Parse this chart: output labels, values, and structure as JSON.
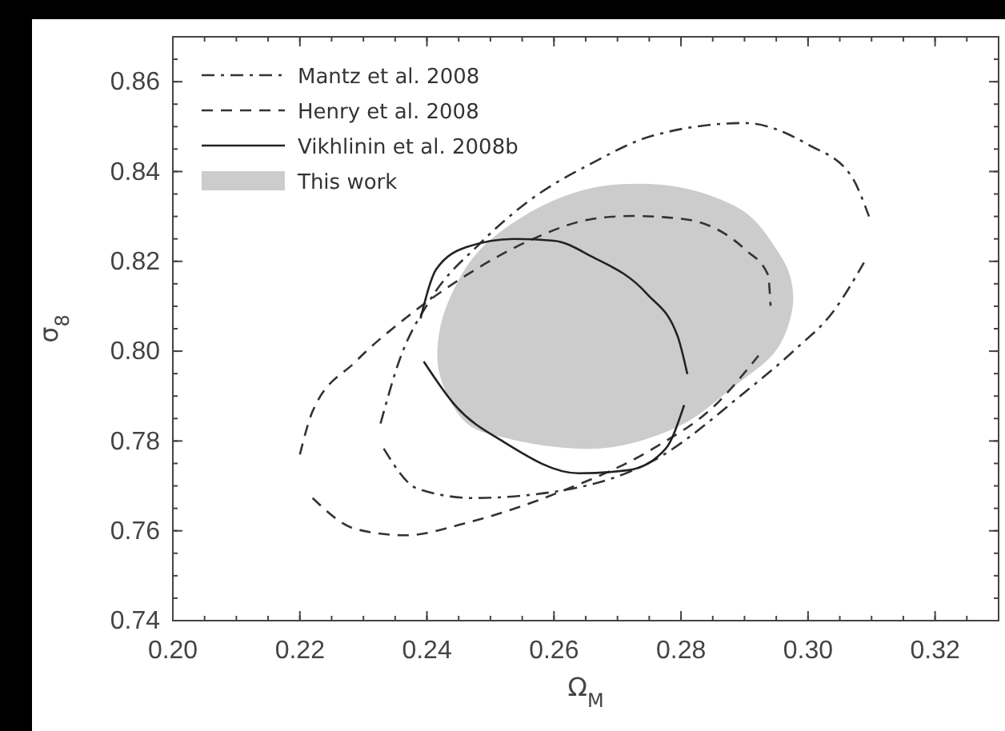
{
  "chart_data": {
    "type": "line",
    "xlabel": "Ω$_{M}$",
    "ylabel": "σ$_{8}$",
    "xlim": [
      0.2,
      0.33
    ],
    "ylim": [
      0.74,
      0.87
    ],
    "xticks": [
      {
        "value": 0.2,
        "label": "0.20"
      },
      {
        "value": 0.22,
        "label": "0.22"
      },
      {
        "value": 0.24,
        "label": "0.24"
      },
      {
        "value": 0.26,
        "label": "0.26"
      },
      {
        "value": 0.28,
        "label": "0.28"
      },
      {
        "value": 0.3,
        "label": "0.30"
      },
      {
        "value": 0.32,
        "label": "0.32"
      }
    ],
    "yticks": [
      0.74,
      0.76,
      0.78,
      {
        "value": 0.8,
        "label": "0.80"
      },
      0.82,
      0.84,
      0.86
    ],
    "legend": "top left",
    "grid": false,
    "marker": "none",
    "series": [
      {
        "name": "This work",
        "type": "area",
        "color": "#cccccc",
        "x": [
          0.2707,
          0.2805,
          0.2902,
          0.2951,
          0.2971,
          0.2976,
          0.2951,
          0.2883,
          0.2805,
          0.2707,
          0.2639,
          0.2532,
          0.2463,
          0.242,
          0.242,
          0.2444,
          0.2483,
          0.2561,
          0.2639
        ],
        "values": [
          0.8372,
          0.8363,
          0.8308,
          0.8225,
          0.817,
          0.8101,
          0.8004,
          0.7921,
          0.7839,
          0.779,
          0.7783,
          0.7804,
          0.7839,
          0.7949,
          0.8046,
          0.8142,
          0.8225,
          0.8308,
          0.8356
        ]
      },
      {
        "name": "Mantz et al. 2008",
        "line_style": "dashdot",
        "color": "#333333",
        "x": [
          0.2327,
          0.2356,
          0.2405,
          0.2483,
          0.2561,
          0.2659,
          0.2756,
          0.29,
          0.3,
          0.3068,
          0.3096
        ],
        "values": [
          0.7839,
          0.7977,
          0.8114,
          0.8239,
          0.8335,
          0.8418,
          0.848,
          0.8508,
          0.846,
          0.839,
          0.83
        ]
      },
      {
        "line_style": "dashdot",
        "color": "#333333",
        "x": [
          0.2332,
          0.2385,
          0.2473,
          0.2629,
          0.2756,
          0.29,
          0.298,
          0.3039,
          0.3088
        ],
        "values": [
          0.7783,
          0.7694,
          0.7673,
          0.7694,
          0.7756,
          0.7908,
          0.8004,
          0.8087,
          0.8197
        ]
      },
      {
        "name": "Henry et al. 2008",
        "line_style": "dashed",
        "color": "#333333",
        "x": [
          0.22,
          0.222,
          0.2288,
          0.2366,
          0.2463,
          0.2561,
          0.2659,
          0.2722,
          0.2805,
          0.2902,
          0.2937,
          0.2941
        ],
        "values": [
          0.777,
          0.7866,
          0.7977,
          0.8073,
          0.817,
          0.8246,
          0.8294,
          0.8301,
          0.8294,
          0.8225,
          0.817,
          0.8101
        ]
      },
      {
        "line_style": "dashed",
        "color": "#333333",
        "x": [
          0.222,
          0.2288,
          0.2366,
          0.2463,
          0.261,
          0.2756,
          0.2854,
          0.2922
        ],
        "values": [
          0.7673,
          0.7604,
          0.759,
          0.7618,
          0.7687,
          0.7783,
          0.788,
          0.799
        ]
      },
      {
        "name": "Vikhlinin et al. 2008b",
        "line_style": "solid",
        "color": "#222222",
        "x": [
          0.239,
          0.2415,
          0.2463,
          0.2537,
          0.26,
          0.2659,
          0.2746,
          0.2795,
          0.281
        ],
        "values": [
          0.8073,
          0.8183,
          0.8232,
          0.825,
          0.8246,
          0.8211,
          0.8128,
          0.8032,
          0.7949
        ]
      },
      {
        "line_style": "solid",
        "color": "#222222",
        "x": [
          0.2395,
          0.2444,
          0.2522,
          0.2639,
          0.2717,
          0.2776,
          0.2805
        ],
        "values": [
          0.7977,
          0.788,
          0.7797,
          0.7728,
          0.7735,
          0.7783,
          0.788
        ]
      }
    ]
  }
}
